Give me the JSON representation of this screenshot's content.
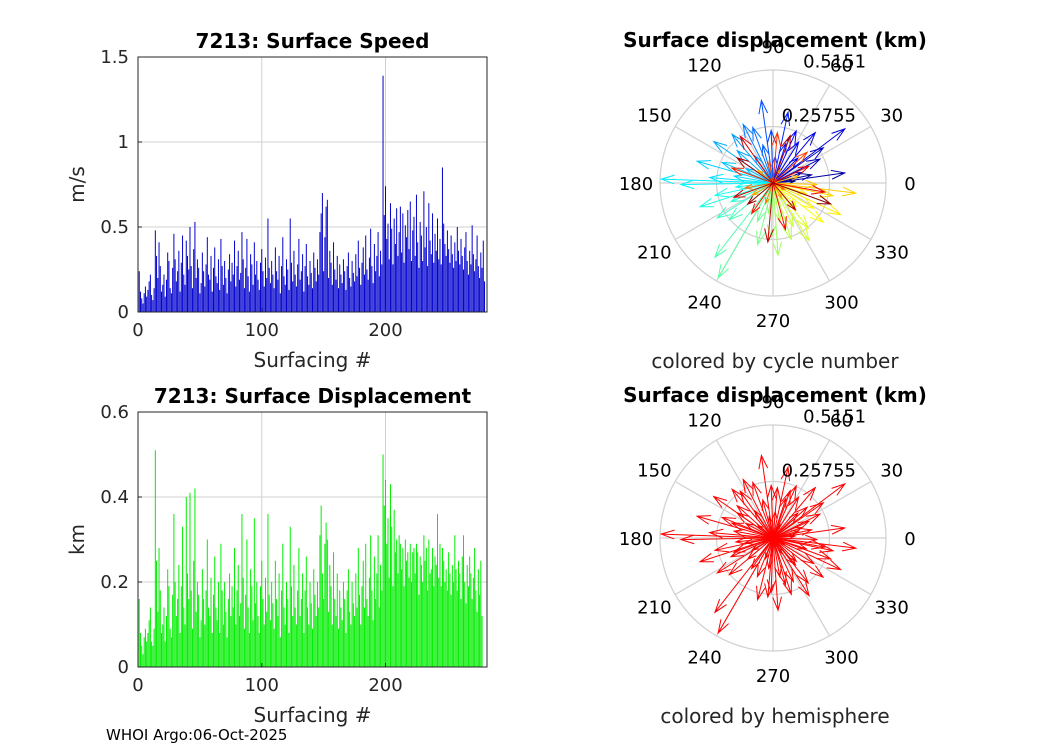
{
  "footer": "WHOI Argo:06-Oct-2025",
  "colors": {
    "speed": "#0000cc",
    "disp": "#00ee00",
    "hemi": "#ff0000",
    "grid": "#d0d0d0",
    "axis": "#262626"
  },
  "chart_data": [
    {
      "id": "speed",
      "type": "bar",
      "title": "7213: Surface Speed",
      "xlabel": "Surfacing #",
      "ylabel": "m/s",
      "xlim": [
        0,
        282
      ],
      "ylim": [
        0,
        1.5
      ],
      "xticks": [
        0,
        100,
        200
      ],
      "yticks": [
        0,
        0.5,
        1,
        1.5
      ],
      "ytick_labels": [
        "0",
        "0.5",
        "1",
        "1.5"
      ],
      "grid": true,
      "color": "#0000cc",
      "values": [
        0.24,
        0.12,
        0.08,
        0.05,
        0.11,
        0.15,
        0.09,
        0.13,
        0.18,
        0.22,
        0.1,
        0.07,
        0.14,
        0.48,
        0.33,
        0.2,
        0.41,
        0.27,
        0.12,
        0.16,
        0.22,
        0.09,
        0.19,
        0.35,
        0.3,
        0.14,
        0.11,
        0.26,
        0.46,
        0.31,
        0.18,
        0.24,
        0.36,
        0.12,
        0.29,
        0.45,
        0.22,
        0.16,
        0.42,
        0.33,
        0.25,
        0.5,
        0.27,
        0.14,
        0.37,
        0.53,
        0.2,
        0.31,
        0.26,
        0.11,
        0.17,
        0.35,
        0.24,
        0.15,
        0.28,
        0.44,
        0.22,
        0.19,
        0.33,
        0.12,
        0.26,
        0.38,
        0.21,
        0.17,
        0.31,
        0.13,
        0.43,
        0.27,
        0.16,
        0.3,
        0.2,
        0.11,
        0.25,
        0.34,
        0.18,
        0.29,
        0.22,
        0.42,
        0.15,
        0.27,
        0.36,
        0.19,
        0.23,
        0.47,
        0.31,
        0.14,
        0.26,
        0.43,
        0.21,
        0.12,
        0.34,
        0.28,
        0.16,
        0.41,
        0.22,
        0.3,
        0.19,
        0.13,
        0.29,
        0.37,
        0.24,
        0.15,
        0.32,
        0.2,
        0.55,
        0.26,
        0.17,
        0.3,
        0.22,
        0.14,
        0.38,
        0.24,
        0.19,
        0.33,
        0.11,
        0.27,
        0.44,
        0.21,
        0.16,
        0.31,
        0.25,
        0.13,
        0.55,
        0.29,
        0.18,
        0.36,
        0.22,
        0.15,
        0.28,
        0.43,
        0.19,
        0.24,
        0.34,
        0.12,
        0.27,
        0.4,
        0.21,
        0.16,
        0.3,
        0.23,
        0.14,
        0.35,
        0.26,
        0.18,
        0.31,
        0.22,
        0.47,
        0.58,
        0.7,
        0.24,
        0.44,
        0.62,
        0.66,
        0.2,
        0.36,
        0.29,
        0.16,
        0.41,
        0.25,
        0.19,
        0.33,
        0.14,
        0.28,
        0.22,
        0.17,
        0.31,
        0.24,
        0.13,
        0.27,
        0.35,
        0.2,
        0.15,
        0.3,
        0.23,
        0.18,
        0.34,
        0.21,
        0.42,
        0.26,
        0.16,
        0.29,
        0.38,
        0.22,
        0.45,
        0.25,
        0.19,
        0.32,
        0.49,
        0.27,
        0.17,
        0.4,
        0.24,
        0.33,
        0.47,
        0.21,
        0.36,
        0.28,
        1.39,
        0.57,
        0.74,
        0.43,
        0.52,
        0.31,
        0.64,
        0.49,
        0.28,
        0.55,
        0.4,
        0.61,
        0.33,
        0.47,
        0.62,
        0.35,
        0.58,
        0.29,
        0.51,
        0.44,
        0.6,
        0.37,
        0.65,
        0.3,
        0.48,
        0.56,
        0.33,
        0.69,
        0.41,
        0.26,
        0.53,
        0.45,
        0.3,
        0.71,
        0.38,
        0.5,
        0.27,
        0.64,
        0.42,
        0.34,
        0.58,
        0.29,
        0.46,
        0.36,
        0.55,
        0.31,
        0.43,
        0.28,
        0.85,
        0.52,
        0.4,
        0.33,
        0.48,
        0.37,
        0.29,
        0.45,
        0.34,
        0.26,
        0.41,
        0.3,
        0.5,
        0.36,
        0.28,
        0.43,
        0.33,
        0.25,
        0.38,
        0.47,
        0.3,
        0.22,
        0.36,
        0.28,
        0.51,
        0.34,
        0.24,
        0.31,
        0.45,
        0.27,
        0.2,
        0.35,
        0.26,
        0.42,
        0.18
      ]
    },
    {
      "id": "disp",
      "type": "bar",
      "title": "7213: Surface Displacement",
      "xlabel": "Surfacing #",
      "ylabel": "km",
      "xlim": [
        0,
        282
      ],
      "ylim": [
        0,
        0.6
      ],
      "xticks": [
        0,
        100,
        200
      ],
      "yticks": [
        0,
        0.2,
        0.4,
        0.6
      ],
      "ytick_labels": [
        "0",
        "0.2",
        "0.4",
        "0.6"
      ],
      "grid": true,
      "color": "#00ee00",
      "values": [
        0.16,
        0.08,
        0.05,
        0.03,
        0.07,
        0.09,
        0.06,
        0.08,
        0.11,
        0.14,
        0.06,
        0.05,
        0.09,
        0.51,
        0.25,
        0.13,
        0.28,
        0.18,
        0.08,
        0.1,
        0.14,
        0.06,
        0.12,
        0.23,
        0.19,
        0.09,
        0.07,
        0.17,
        0.36,
        0.2,
        0.12,
        0.16,
        0.24,
        0.08,
        0.19,
        0.33,
        0.14,
        0.1,
        0.4,
        0.22,
        0.16,
        0.41,
        0.18,
        0.09,
        0.25,
        0.42,
        0.13,
        0.2,
        0.17,
        0.07,
        0.11,
        0.23,
        0.16,
        0.1,
        0.18,
        0.3,
        0.14,
        0.12,
        0.21,
        0.08,
        0.17,
        0.26,
        0.14,
        0.11,
        0.2,
        0.08,
        0.29,
        0.18,
        0.1,
        0.2,
        0.13,
        0.07,
        0.16,
        0.22,
        0.12,
        0.19,
        0.14,
        0.28,
        0.1,
        0.18,
        0.24,
        0.12,
        0.15,
        0.36,
        0.21,
        0.09,
        0.17,
        0.3,
        0.14,
        0.08,
        0.23,
        0.19,
        0.11,
        0.35,
        0.15,
        0.2,
        0.12,
        0.08,
        0.19,
        0.25,
        0.16,
        0.1,
        0.21,
        0.13,
        0.36,
        0.17,
        0.11,
        0.2,
        0.15,
        0.09,
        0.25,
        0.16,
        0.12,
        0.22,
        0.07,
        0.18,
        0.29,
        0.14,
        0.1,
        0.2,
        0.16,
        0.08,
        0.33,
        0.19,
        0.12,
        0.24,
        0.14,
        0.1,
        0.18,
        0.28,
        0.12,
        0.16,
        0.22,
        0.08,
        0.18,
        0.26,
        0.14,
        0.1,
        0.2,
        0.15,
        0.09,
        0.23,
        0.17,
        0.12,
        0.2,
        0.14,
        0.31,
        0.38,
        0.22,
        0.16,
        0.29,
        0.34,
        0.3,
        0.13,
        0.24,
        0.19,
        0.1,
        0.27,
        0.16,
        0.12,
        0.22,
        0.09,
        0.18,
        0.14,
        0.11,
        0.2,
        0.16,
        0.08,
        0.18,
        0.23,
        0.13,
        0.1,
        0.2,
        0.15,
        0.12,
        0.22,
        0.14,
        0.28,
        0.17,
        0.1,
        0.19,
        0.25,
        0.14,
        0.29,
        0.16,
        0.12,
        0.21,
        0.31,
        0.18,
        0.11,
        0.26,
        0.16,
        0.22,
        0.31,
        0.14,
        0.24,
        0.18,
        0.5,
        0.38,
        0.44,
        0.29,
        0.35,
        0.21,
        0.43,
        0.33,
        0.19,
        0.37,
        0.27,
        0.3,
        0.22,
        0.31,
        0.29,
        0.23,
        0.28,
        0.19,
        0.3,
        0.25,
        0.27,
        0.21,
        0.29,
        0.2,
        0.27,
        0.28,
        0.22,
        0.29,
        0.27,
        0.17,
        0.26,
        0.24,
        0.2,
        0.31,
        0.25,
        0.28,
        0.18,
        0.3,
        0.22,
        0.23,
        0.28,
        0.19,
        0.26,
        0.24,
        0.36,
        0.21,
        0.29,
        0.19,
        0.28,
        0.25,
        0.2,
        0.23,
        0.18,
        0.27,
        0.22,
        0.17,
        0.24,
        0.2,
        0.31,
        0.23,
        0.18,
        0.25,
        0.22,
        0.16,
        0.26,
        0.31,
        0.2,
        0.15,
        0.24,
        0.19,
        0.26,
        0.22,
        0.16,
        0.21,
        0.28,
        0.18,
        0.13,
        0.23,
        0.17,
        0.25,
        0.12
      ]
    },
    {
      "id": "polar1",
      "type": "polar-compass",
      "title": "Surface displacement (km)",
      "subtitle": "colored by cycle number",
      "coloring": "cycle",
      "r_max": 0.5151,
      "r_tick_labels": [
        "0.25755",
        "0.5151"
      ],
      "theta_tick_labels": [
        "0",
        "30",
        "60",
        "90",
        "120",
        "150",
        "180",
        "210",
        "240",
        "270",
        "300",
        "330"
      ],
      "arrows": [
        [
          0.1,
          5
        ],
        [
          0.18,
          12
        ],
        [
          0.33,
          8
        ],
        [
          0.14,
          20
        ],
        [
          0.24,
          27
        ],
        [
          0.28,
          35
        ],
        [
          0.41,
          37
        ],
        [
          0.16,
          45
        ],
        [
          0.3,
          50
        ],
        [
          0.22,
          58
        ],
        [
          0.26,
          66
        ],
        [
          0.19,
          72
        ],
        [
          0.33,
          78
        ],
        [
          0.12,
          85
        ],
        [
          0.24,
          92
        ],
        [
          0.38,
          98
        ],
        [
          0.18,
          105
        ],
        [
          0.27,
          110
        ],
        [
          0.3,
          117
        ],
        [
          0.15,
          124
        ],
        [
          0.29,
          130
        ],
        [
          0.22,
          138
        ],
        [
          0.33,
          145
        ],
        [
          0.14,
          152
        ],
        [
          0.25,
          158
        ],
        [
          0.36,
          164
        ],
        [
          0.18,
          170
        ],
        [
          0.29,
          175
        ],
        [
          0.51,
          178
        ],
        [
          0.42,
          181
        ],
        [
          0.17,
          186
        ],
        [
          0.27,
          192
        ],
        [
          0.35,
          198
        ],
        [
          0.21,
          204
        ],
        [
          0.3,
          212
        ],
        [
          0.26,
          220
        ],
        [
          0.43,
          232
        ],
        [
          0.5,
          240
        ],
        [
          0.19,
          248
        ],
        [
          0.29,
          256
        ],
        [
          0.14,
          262
        ],
        [
          0.25,
          268
        ],
        [
          0.33,
          274
        ],
        [
          0.18,
          280
        ],
        [
          0.27,
          288
        ],
        [
          0.22,
          295
        ],
        [
          0.31,
          302
        ],
        [
          0.26,
          308
        ],
        [
          0.15,
          315
        ],
        [
          0.29,
          322
        ],
        [
          0.22,
          328
        ],
        [
          0.34,
          335
        ],
        [
          0.16,
          342
        ],
        [
          0.28,
          348
        ],
        [
          0.38,
          353
        ],
        [
          0.2,
          358
        ],
        [
          0.12,
          15
        ],
        [
          0.09,
          140
        ],
        [
          0.11,
          210
        ],
        [
          0.08,
          300
        ],
        [
          0.07,
          62
        ],
        [
          0.1,
          250
        ],
        [
          0.13,
          190
        ],
        [
          0.06,
          330
        ],
        [
          0.1,
          100
        ],
        [
          0.21,
          42
        ],
        [
          0.23,
          85
        ],
        [
          0.2,
          160
        ],
        [
          0.17,
          235
        ],
        [
          0.22,
          285
        ],
        [
          0.24,
          350
        ],
        [
          0.18,
          25
        ],
        [
          0.26,
          125
        ],
        [
          0.19,
          200
        ],
        [
          0.27,
          265
        ],
        [
          0.16,
          310
        ],
        [
          0.23,
          70
        ],
        [
          0.2,
          145
        ],
        [
          0.15,
          220
        ],
        [
          0.28,
          340
        ]
      ]
    },
    {
      "id": "polar2",
      "type": "polar-compass",
      "title": "Surface displacement (km)",
      "subtitle": "colored by hemisphere",
      "coloring": "hemisphere",
      "r_max": 0.5151,
      "r_tick_labels": [
        "0.25755",
        "0.5151"
      ],
      "theta_tick_labels": [
        "0",
        "30",
        "60",
        "90",
        "120",
        "150",
        "180",
        "210",
        "240",
        "270",
        "300",
        "330"
      ],
      "arrows": [
        [
          0.1,
          5
        ],
        [
          0.18,
          12
        ],
        [
          0.33,
          8
        ],
        [
          0.14,
          20
        ],
        [
          0.24,
          27
        ],
        [
          0.28,
          35
        ],
        [
          0.41,
          37
        ],
        [
          0.16,
          45
        ],
        [
          0.3,
          50
        ],
        [
          0.22,
          58
        ],
        [
          0.26,
          66
        ],
        [
          0.19,
          72
        ],
        [
          0.33,
          78
        ],
        [
          0.12,
          85
        ],
        [
          0.24,
          92
        ],
        [
          0.38,
          98
        ],
        [
          0.18,
          105
        ],
        [
          0.27,
          110
        ],
        [
          0.3,
          117
        ],
        [
          0.15,
          124
        ],
        [
          0.29,
          130
        ],
        [
          0.22,
          138
        ],
        [
          0.33,
          145
        ],
        [
          0.14,
          152
        ],
        [
          0.25,
          158
        ],
        [
          0.36,
          164
        ],
        [
          0.18,
          170
        ],
        [
          0.29,
          175
        ],
        [
          0.51,
          178
        ],
        [
          0.42,
          181
        ],
        [
          0.17,
          186
        ],
        [
          0.27,
          192
        ],
        [
          0.35,
          198
        ],
        [
          0.21,
          204
        ],
        [
          0.3,
          212
        ],
        [
          0.26,
          220
        ],
        [
          0.43,
          232
        ],
        [
          0.5,
          240
        ],
        [
          0.19,
          248
        ],
        [
          0.29,
          256
        ],
        [
          0.14,
          262
        ],
        [
          0.25,
          268
        ],
        [
          0.33,
          274
        ],
        [
          0.18,
          280
        ],
        [
          0.27,
          288
        ],
        [
          0.22,
          295
        ],
        [
          0.31,
          302
        ],
        [
          0.26,
          308
        ],
        [
          0.15,
          315
        ],
        [
          0.29,
          322
        ],
        [
          0.22,
          328
        ],
        [
          0.34,
          335
        ],
        [
          0.16,
          342
        ],
        [
          0.28,
          348
        ],
        [
          0.38,
          353
        ],
        [
          0.2,
          358
        ],
        [
          0.12,
          15
        ],
        [
          0.09,
          140
        ],
        [
          0.11,
          210
        ],
        [
          0.08,
          300
        ],
        [
          0.07,
          62
        ],
        [
          0.1,
          250
        ],
        [
          0.13,
          190
        ],
        [
          0.06,
          330
        ],
        [
          0.1,
          100
        ],
        [
          0.21,
          42
        ],
        [
          0.23,
          85
        ],
        [
          0.2,
          160
        ],
        [
          0.17,
          235
        ],
        [
          0.22,
          285
        ],
        [
          0.24,
          350
        ],
        [
          0.18,
          25
        ],
        [
          0.26,
          125
        ],
        [
          0.19,
          200
        ],
        [
          0.27,
          265
        ],
        [
          0.16,
          310
        ],
        [
          0.23,
          70
        ],
        [
          0.2,
          145
        ],
        [
          0.15,
          220
        ],
        [
          0.28,
          340
        ]
      ]
    }
  ]
}
